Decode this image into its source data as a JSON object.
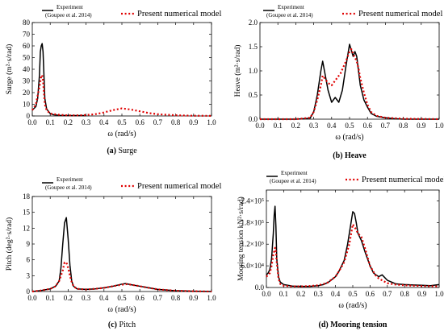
{
  "legend": {
    "experiment": "Experiment",
    "experiment_ref": "(Goupee et al. 2014)",
    "numerical": "Present numerical model"
  },
  "colors": {
    "experiment": "#000000",
    "numerical": "#e00000"
  },
  "chart_data": [
    {
      "id": "surge",
      "type": "line",
      "caption_letter": "(a)",
      "caption_text": "Surge",
      "xlabel": "ω (rad/s)",
      "ylabel": "Surge (m²·s/rad)",
      "xlim": [
        0,
        1.0
      ],
      "ylim": [
        0,
        80
      ],
      "xticks": [
        0.0,
        0.1,
        0.2,
        0.3,
        0.4,
        0.5,
        0.6,
        0.7,
        0.8,
        0.9,
        1.0
      ],
      "yticks": [
        0,
        10,
        20,
        30,
        40,
        50,
        60,
        70,
        80
      ],
      "ytick_labels": [
        "0",
        "10",
        "20",
        "30",
        "40",
        "50",
        "60",
        "70",
        "80"
      ],
      "series": [
        {
          "name": "Experiment",
          "style": "solid",
          "x": [
            0.0,
            0.02,
            0.03,
            0.04,
            0.045,
            0.05,
            0.055,
            0.06,
            0.065,
            0.07,
            0.08,
            0.1,
            0.12,
            0.15,
            0.2,
            0.3
          ],
          "y": [
            5,
            8,
            15,
            35,
            55,
            60,
            62,
            55,
            35,
            15,
            6,
            2,
            1,
            0.5,
            0.3,
            0.3
          ]
        },
        {
          "name": "Present numerical model",
          "style": "dashed",
          "x": [
            0.0,
            0.02,
            0.04,
            0.05,
            0.055,
            0.06,
            0.065,
            0.07,
            0.08,
            0.1,
            0.15,
            0.2,
            0.25,
            0.3,
            0.35,
            0.4,
            0.45,
            0.5,
            0.55,
            0.6,
            0.65,
            0.7,
            0.8,
            0.9,
            1.0
          ],
          "y": [
            5,
            10,
            25,
            34,
            35,
            30,
            20,
            10,
            5,
            2,
            1,
            0.5,
            0.5,
            0.8,
            1.5,
            3,
            5,
            6.5,
            5.5,
            4,
            2.5,
            1.5,
            0.6,
            0.2,
            0.1
          ]
        }
      ]
    },
    {
      "id": "heave",
      "type": "line",
      "caption_letter": "(b)",
      "caption_text": "Heave",
      "xlabel": "ω (rad/s)",
      "ylabel": "Heave (m²·s/rad)",
      "xlim": [
        0,
        1.0
      ],
      "ylim": [
        0,
        2.0
      ],
      "xticks": [
        0.0,
        0.1,
        0.2,
        0.3,
        0.4,
        0.5,
        0.6,
        0.7,
        0.8,
        0.9,
        1.0
      ],
      "yticks": [
        0,
        0.5,
        1.0,
        1.5,
        2.0
      ],
      "ytick_labels": [
        "0.0",
        "0.5",
        "1.0",
        "1.5",
        "2.0"
      ],
      "series": [
        {
          "name": "Experiment",
          "style": "solid",
          "x": [
            0.0,
            0.2,
            0.28,
            0.3,
            0.32,
            0.34,
            0.35,
            0.36,
            0.38,
            0.4,
            0.42,
            0.44,
            0.46,
            0.48,
            0.5,
            0.52,
            0.53,
            0.54,
            0.55,
            0.56,
            0.58,
            0.6,
            0.62,
            0.65,
            0.7,
            0.75,
            0.8,
            1.0
          ],
          "y": [
            0,
            0,
            0.02,
            0.15,
            0.5,
            1.0,
            1.2,
            1.0,
            0.6,
            0.35,
            0.45,
            0.35,
            0.6,
            1.1,
            1.55,
            1.3,
            1.4,
            1.3,
            1.0,
            0.7,
            0.4,
            0.25,
            0.12,
            0.06,
            0.03,
            0.01,
            0,
            0
          ]
        },
        {
          "name": "Present numerical model",
          "style": "dashed",
          "x": [
            0.0,
            0.2,
            0.28,
            0.3,
            0.32,
            0.34,
            0.35,
            0.36,
            0.38,
            0.4,
            0.42,
            0.45,
            0.48,
            0.5,
            0.51,
            0.52,
            0.54,
            0.55,
            0.56,
            0.58,
            0.6,
            0.62,
            0.65,
            0.7,
            0.8,
            1.0
          ],
          "y": [
            0,
            0,
            0.03,
            0.15,
            0.4,
            0.7,
            0.9,
            0.85,
            0.75,
            0.7,
            0.8,
            0.95,
            1.2,
            1.4,
            1.45,
            1.35,
            1.2,
            1.05,
            0.85,
            0.55,
            0.3,
            0.15,
            0.07,
            0.03,
            0.01,
            0
          ]
        }
      ]
    },
    {
      "id": "pitch",
      "type": "line",
      "caption_letter": "(c)",
      "caption_text": "Pitch",
      "xlabel": "ω (rad/s)",
      "ylabel": "Pitch (deg²·s/rad)",
      "xlim": [
        0,
        1.0
      ],
      "ylim": [
        0,
        18
      ],
      "xticks": [
        0.0,
        0.1,
        0.2,
        0.3,
        0.4,
        0.5,
        0.6,
        0.7,
        0.8,
        0.9,
        1.0
      ],
      "yticks": [
        0,
        3,
        6,
        9,
        12,
        15,
        18
      ],
      "ytick_labels": [
        "0",
        "3",
        "6",
        "9",
        "12",
        "15",
        "18"
      ],
      "series": [
        {
          "name": "Experiment",
          "style": "solid",
          "x": [
            0.0,
            0.05,
            0.1,
            0.13,
            0.15,
            0.16,
            0.17,
            0.18,
            0.19,
            0.2,
            0.21,
            0.22,
            0.23,
            0.25,
            0.3,
            0.35,
            0.4,
            0.45,
            0.5,
            0.52,
            0.55,
            0.6,
            0.65,
            0.7,
            0.8,
            0.9,
            1.0
          ],
          "y": [
            0,
            0.2,
            0.5,
            1.0,
            2.0,
            4.5,
            9.0,
            13.0,
            14.0,
            10.0,
            5.0,
            2.0,
            1.0,
            0.5,
            0.4,
            0.5,
            0.7,
            1.0,
            1.4,
            1.5,
            1.3,
            1.0,
            0.7,
            0.4,
            0.15,
            0.05,
            0
          ]
        },
        {
          "name": "Present numerical model",
          "style": "dashed",
          "x": [
            0.0,
            0.05,
            0.1,
            0.13,
            0.15,
            0.17,
            0.18,
            0.19,
            0.2,
            0.21,
            0.22,
            0.23,
            0.25,
            0.3,
            0.35,
            0.4,
            0.45,
            0.5,
            0.53,
            0.55,
            0.6,
            0.65,
            0.7,
            0.8,
            0.9,
            1.0
          ],
          "y": [
            0,
            0.2,
            0.5,
            1.0,
            2.0,
            4.0,
            5.5,
            5.5,
            4.5,
            3.0,
            1.8,
            1.0,
            0.5,
            0.4,
            0.5,
            0.7,
            1.0,
            1.3,
            1.4,
            1.3,
            1.0,
            0.7,
            0.4,
            0.15,
            0.05,
            0
          ]
        }
      ]
    },
    {
      "id": "mooring",
      "type": "line",
      "caption_letter": "(d)",
      "caption_text": "Mooring tension",
      "xlabel": "ω (rad/s)",
      "ylabel": "Mooring tension kN²·s/rad)",
      "xlim": [
        0,
        1.0
      ],
      "ylim": [
        0,
        270000
      ],
      "xticks": [
        0.0,
        0.1,
        0.2,
        0.3,
        0.4,
        0.5,
        0.6,
        0.7,
        0.8,
        0.9,
        1.0
      ],
      "yticks": [
        0,
        60000,
        120000,
        180000,
        240000
      ],
      "ytick_labels": [
        "0.0",
        "6.0×10⁴",
        "1.2×10⁵",
        "1.8×10⁵",
        "2.4×10⁵"
      ],
      "series": [
        {
          "name": "Experiment",
          "style": "solid",
          "x": [
            0.0,
            0.01,
            0.02,
            0.03,
            0.04,
            0.045,
            0.05,
            0.055,
            0.06,
            0.07,
            0.08,
            0.1,
            0.15,
            0.2,
            0.25,
            0.3,
            0.33,
            0.36,
            0.4,
            0.42,
            0.45,
            0.47,
            0.49,
            0.5,
            0.51,
            0.52,
            0.53,
            0.55,
            0.57,
            0.6,
            0.62,
            0.65,
            0.67,
            0.7,
            0.75,
            0.8,
            0.85,
            0.9,
            0.95,
            1.0
          ],
          "y": [
            35000,
            40000,
            50000,
            80000,
            150000,
            200000,
            225000,
            170000,
            80000,
            30000,
            15000,
            8000,
            4000,
            3000,
            3000,
            5000,
            8000,
            15000,
            30000,
            45000,
            75000,
            120000,
            180000,
            210000,
            205000,
            180000,
            150000,
            130000,
            100000,
            60000,
            40000,
            30000,
            35000,
            20000,
            10000,
            8000,
            7000,
            6000,
            5000,
            8000
          ]
        },
        {
          "name": "Present numerical model",
          "style": "dashed",
          "x": [
            0.0,
            0.02,
            0.03,
            0.04,
            0.05,
            0.055,
            0.06,
            0.07,
            0.08,
            0.1,
            0.15,
            0.2,
            0.25,
            0.3,
            0.35,
            0.4,
            0.42,
            0.45,
            0.48,
            0.5,
            0.52,
            0.53,
            0.55,
            0.57,
            0.6,
            0.63,
            0.65,
            0.7,
            0.75,
            0.8,
            0.9,
            1.0
          ],
          "y": [
            30000,
            40000,
            60000,
            90000,
            110000,
            100000,
            70000,
            25000,
            10000,
            5000,
            3000,
            3000,
            4000,
            6000,
            12000,
            30000,
            45000,
            70000,
            120000,
            175000,
            160000,
            150000,
            140000,
            110000,
            60000,
            35000,
            25000,
            12000,
            8000,
            6000,
            4000,
            3000
          ]
        }
      ]
    }
  ]
}
